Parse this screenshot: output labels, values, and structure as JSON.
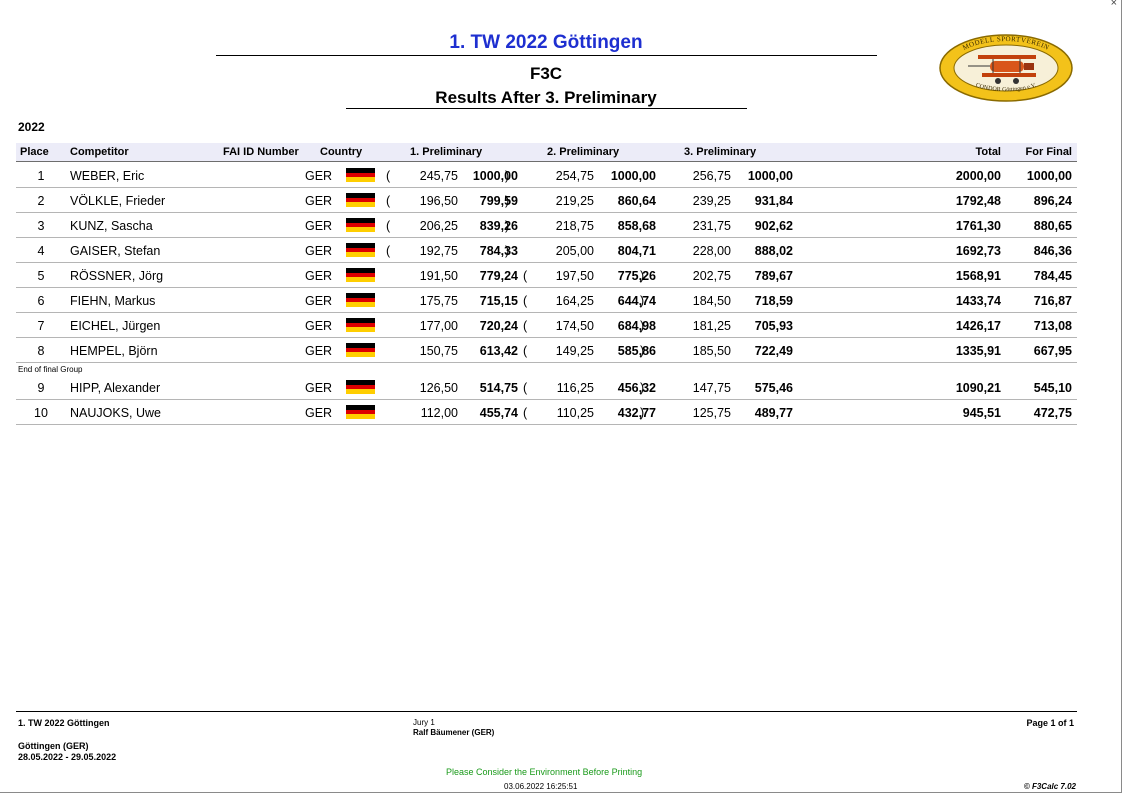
{
  "header": {
    "event_title": "1. TW 2022 Göttingen",
    "class_title": "F3C",
    "results_title": "Results After 3. Preliminary",
    "logo_text_top": "MODELL SPORTVEREIN",
    "logo_text_bottom": "CONDOR Göttingen e.V."
  },
  "year_label": "2022",
  "columns": {
    "place": "Place",
    "competitor": "Competitor",
    "fai": "FAI ID Number",
    "country": "Country",
    "r1": "1. Preliminary",
    "r2": "2. Preliminary",
    "r3": "3. Preliminary",
    "total": "Total",
    "final": "For Final"
  },
  "rows": [
    {
      "place": "1",
      "name": "WEBER, Eric",
      "country": "GER",
      "r1_raw": "245,75",
      "r1_norm": "1000,00",
      "r1_drop": true,
      "r2_raw": "254,75",
      "r2_norm": "1000,00",
      "r2_drop": false,
      "r3_raw": "256,75",
      "r3_norm": "1000,00",
      "r3_drop": false,
      "total": "2000,00",
      "final": "1000,00"
    },
    {
      "place": "2",
      "name": "VÖLKLE, Frieder",
      "country": "GER",
      "r1_raw": "196,50",
      "r1_norm": "799,59",
      "r1_drop": true,
      "r2_raw": "219,25",
      "r2_norm": "860,64",
      "r2_drop": false,
      "r3_raw": "239,25",
      "r3_norm": "931,84",
      "r3_drop": false,
      "total": "1792,48",
      "final": "896,24"
    },
    {
      "place": "3",
      "name": "KUNZ, Sascha",
      "country": "GER",
      "r1_raw": "206,25",
      "r1_norm": "839,26",
      "r1_drop": true,
      "r2_raw": "218,75",
      "r2_norm": "858,68",
      "r2_drop": false,
      "r3_raw": "231,75",
      "r3_norm": "902,62",
      "r3_drop": false,
      "total": "1761,30",
      "final": "880,65"
    },
    {
      "place": "4",
      "name": "GAISER, Stefan",
      "country": "GER",
      "r1_raw": "192,75",
      "r1_norm": "784,33",
      "r1_drop": true,
      "r2_raw": "205,00",
      "r2_norm": "804,71",
      "r2_drop": false,
      "r3_raw": "228,00",
      "r3_norm": "888,02",
      "r3_drop": false,
      "total": "1692,73",
      "final": "846,36"
    },
    {
      "place": "5",
      "name": "RÖSSNER, Jörg",
      "country": "GER",
      "r1_raw": "191,50",
      "r1_norm": "779,24",
      "r1_drop": false,
      "r2_raw": "197,50",
      "r2_norm": "775,26",
      "r2_drop": true,
      "r3_raw": "202,75",
      "r3_norm": "789,67",
      "r3_drop": false,
      "total": "1568,91",
      "final": "784,45"
    },
    {
      "place": "6",
      "name": "FIEHN, Markus",
      "country": "GER",
      "r1_raw": "175,75",
      "r1_norm": "715,15",
      "r1_drop": false,
      "r2_raw": "164,25",
      "r2_norm": "644,74",
      "r2_drop": true,
      "r3_raw": "184,50",
      "r3_norm": "718,59",
      "r3_drop": false,
      "total": "1433,74",
      "final": "716,87"
    },
    {
      "place": "7",
      "name": "EICHEL, Jürgen",
      "country": "GER",
      "r1_raw": "177,00",
      "r1_norm": "720,24",
      "r1_drop": false,
      "r2_raw": "174,50",
      "r2_norm": "684,98",
      "r2_drop": true,
      "r3_raw": "181,25",
      "r3_norm": "705,93",
      "r3_drop": false,
      "total": "1426,17",
      "final": "713,08"
    },
    {
      "place": "8",
      "name": "HEMPEL, Björn",
      "country": "GER",
      "r1_raw": "150,75",
      "r1_norm": "613,42",
      "r1_drop": false,
      "r2_raw": "149,25",
      "r2_norm": "585,86",
      "r2_drop": true,
      "r3_raw": "185,50",
      "r3_norm": "722,49",
      "r3_drop": false,
      "total": "1335,91",
      "final": "667,95"
    },
    {
      "place": "9",
      "name": "HIPP, Alexander",
      "country": "GER",
      "r1_raw": "126,50",
      "r1_norm": "514,75",
      "r1_drop": false,
      "r2_raw": "116,25",
      "r2_norm": "456,32",
      "r2_drop": true,
      "r3_raw": "147,75",
      "r3_norm": "575,46",
      "r3_drop": false,
      "total": "1090,21",
      "final": "545,10"
    },
    {
      "place": "10",
      "name": "NAUJOKS, Uwe",
      "country": "GER",
      "r1_raw": "112,00",
      "r1_norm": "455,74",
      "r1_drop": false,
      "r2_raw": "110,25",
      "r2_norm": "432,77",
      "r2_drop": true,
      "r3_raw": "125,75",
      "r3_norm": "489,77",
      "r3_drop": false,
      "total": "945,51",
      "final": "472,75"
    }
  ],
  "group_separator": "End of final Group",
  "flag_colors": [
    "#000000",
    "#dd0000",
    "#ffce00"
  ],
  "footer": {
    "event": "1. TW 2022 Göttingen",
    "location": "Göttingen (GER)",
    "dates": "28.05.2022 - 29.05.2022",
    "jury_label": "Jury 1",
    "jury_name": "Ralf Bäumener (GER)",
    "page": "Page 1 of 1",
    "environment": "Please Consider the Environment Before Printing",
    "timestamp": "03.06.2022 16:25:51",
    "copyright": "© F3Calc 7.02"
  },
  "colors": {
    "title_blue": "#1e2fd0",
    "env_green": "#1a9a1a",
    "header_bg": "#ececf8"
  }
}
